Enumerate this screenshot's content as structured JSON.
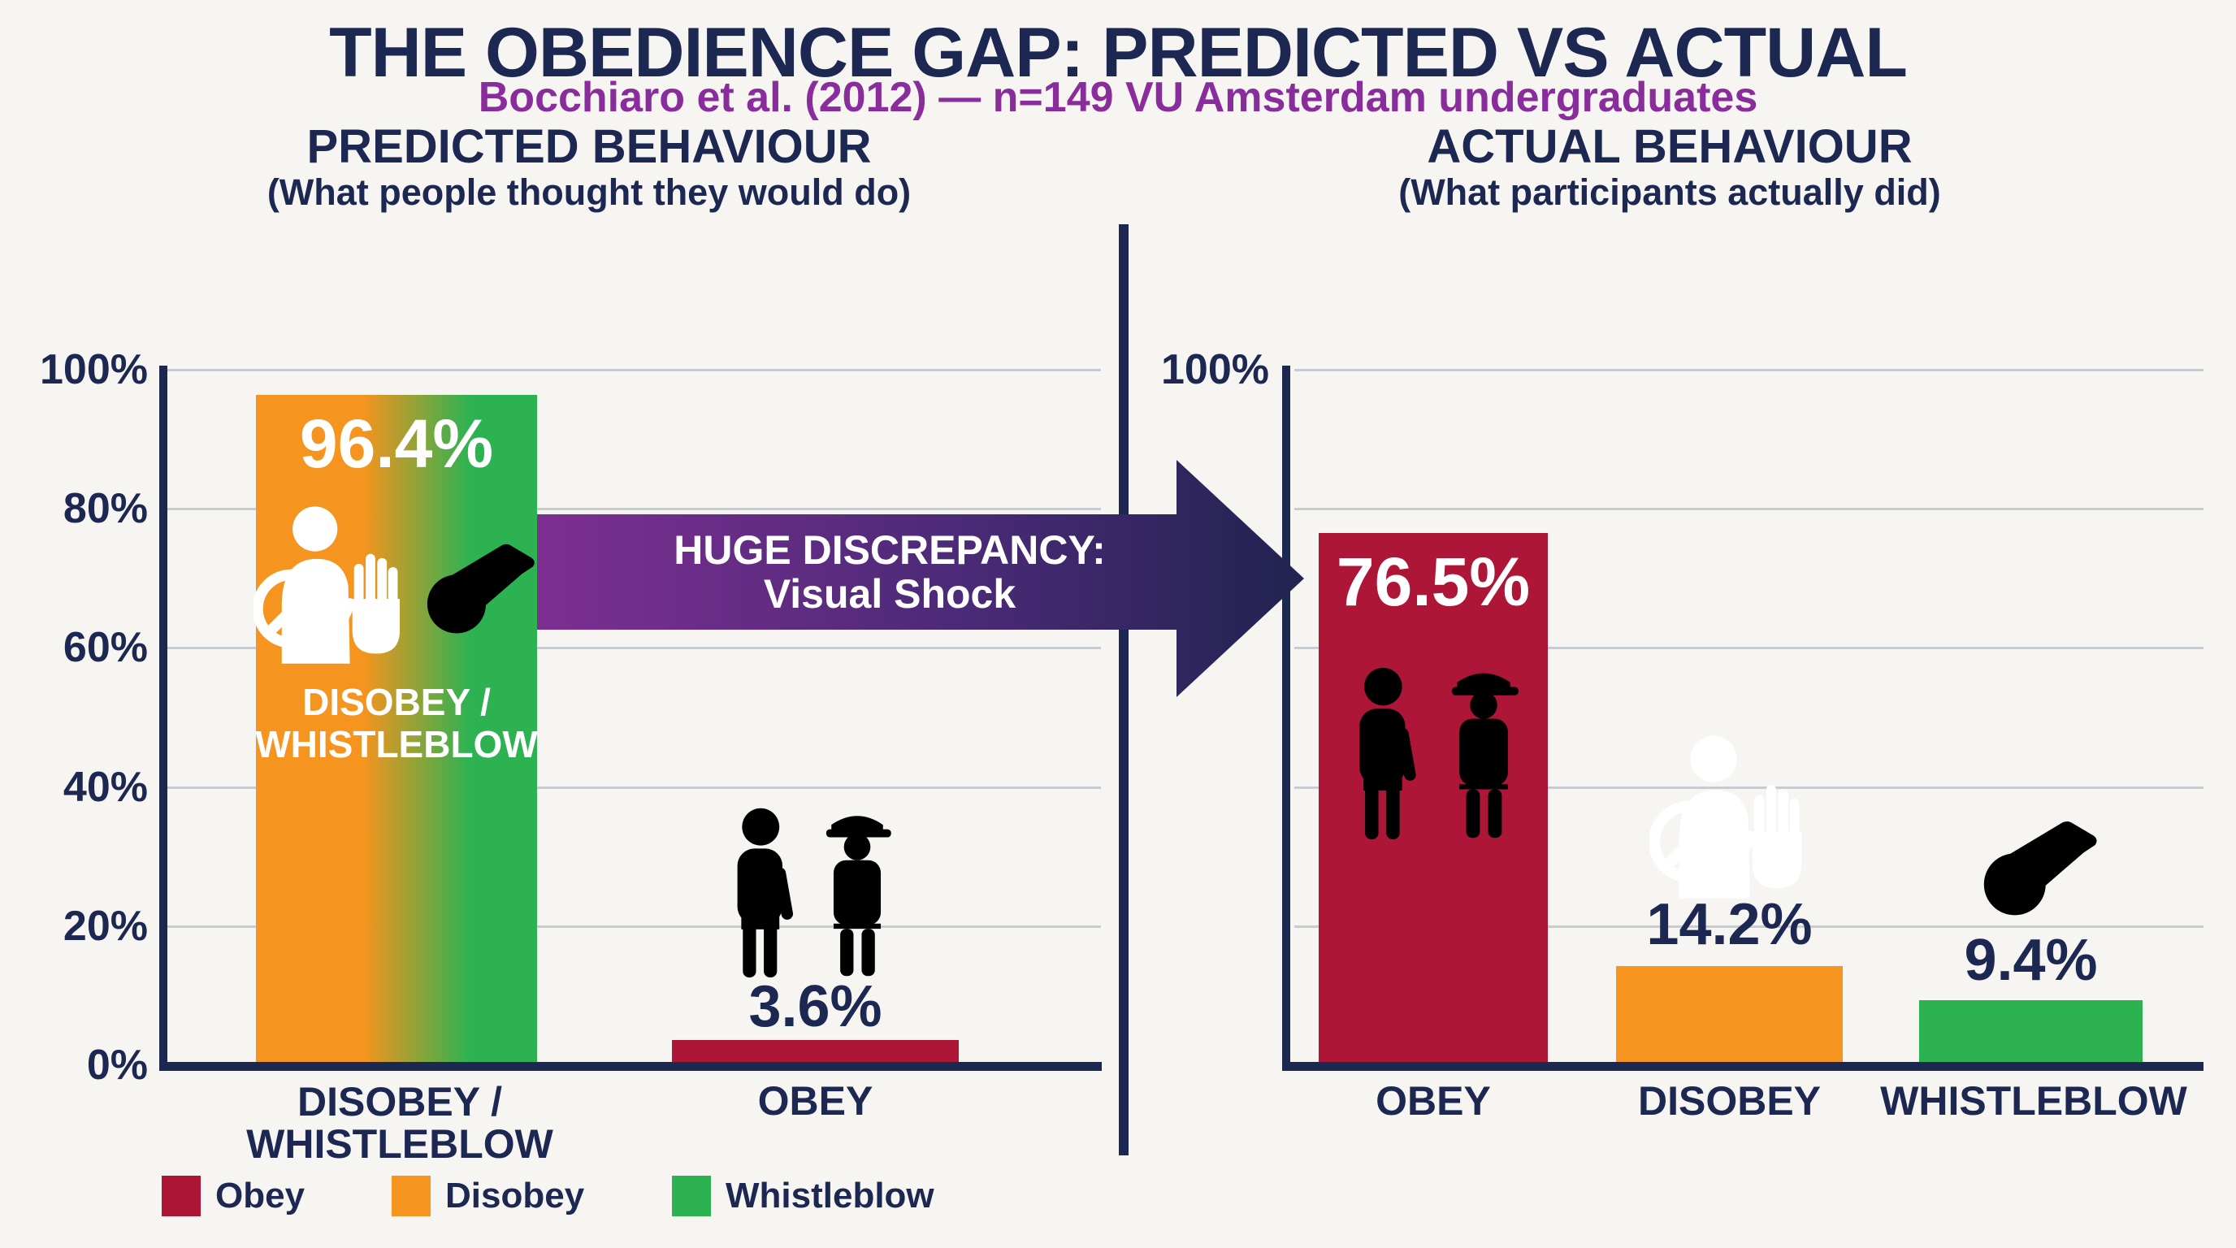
{
  "title": "THE OBEDIENCE GAP: PREDICTED VS ACTUAL",
  "subtitle": "Bocchiaro et al. (2012) — n=149 VU Amsterdam undergraduates",
  "left_chart": {
    "heading": "PREDICTED BEHAVIOUR",
    "subheading": "(What people thought they would do)",
    "yticks": [
      "100%",
      "80%",
      "60%",
      "40%",
      "20%",
      "0%"
    ],
    "bars": {
      "disobey_whistleblow": {
        "value_label": "96.4%",
        "inner_label_line1": "DISOBEY /",
        "inner_label_line2": "WHISTLEBLOW",
        "x_label_line1": "DISOBEY /",
        "x_label_line2": "WHISTLEBLOW"
      },
      "obey": {
        "value_label": "3.6%",
        "x_label": "OBEY"
      }
    }
  },
  "right_chart": {
    "heading": "ACTUAL BEHAVIOUR",
    "subheading": "(What participants actually did)",
    "ytick_top": "100%",
    "bars": {
      "obey": {
        "value_label": "76.5%",
        "x_label": "OBEY"
      },
      "disobey": {
        "value_label": "14.2%",
        "x_label": "DISOBEY"
      },
      "whistleblow": {
        "value_label": "9.4%",
        "x_label": "WHISTLEBLOW"
      }
    }
  },
  "arrow_banner": {
    "line1": "HUGE DISCREPANCY:",
    "line2": "Visual Shock"
  },
  "legend": {
    "items": [
      {
        "label": "Obey",
        "color": "#ae1637"
      },
      {
        "label": "Disobey",
        "color": "#f5941e"
      },
      {
        "label": "Whistleblow",
        "color": "#2db252"
      }
    ]
  },
  "colors": {
    "navy_text": "#1c2752",
    "purple_subtitle": "#8a2d9c",
    "crimson_bar": "#ae1637",
    "orange_bar": "#f5941e",
    "green_bar": "#2db252",
    "gradient_bar": "orange-to-green",
    "arrow_gradient_start": "#7e2f91",
    "arrow_gradient_end": "#20234f",
    "salute_figure_red": "#ef4b31",
    "prohibition_red": "#d7232a",
    "background": "#f7f5f1",
    "gridline": "#c7cbd2"
  },
  "chart_data": [
    {
      "type": "bar",
      "title": "PREDICTED BEHAVIOUR",
      "subtitle": "(What people thought they would do)",
      "categories": [
        "DISOBEY / WHISTLEBLOW",
        "OBEY"
      ],
      "values": [
        96.4,
        3.6
      ],
      "unit": "%",
      "ylim": [
        0,
        100
      ],
      "yticks": [
        0,
        20,
        40,
        60,
        80,
        100
      ],
      "grid": true,
      "bar_colors": [
        "orange-to-green gradient",
        "crimson"
      ]
    },
    {
      "type": "bar",
      "title": "ACTUAL BEHAVIOUR",
      "subtitle": "(What participants actually did)",
      "categories": [
        "OBEY",
        "DISOBEY",
        "WHISTLEBLOW"
      ],
      "values": [
        76.5,
        14.2,
        9.4
      ],
      "unit": "%",
      "ylim": [
        0,
        100
      ],
      "yticks": [
        100
      ],
      "grid": true,
      "bar_colors": [
        "crimson",
        "orange",
        "green"
      ]
    }
  ]
}
